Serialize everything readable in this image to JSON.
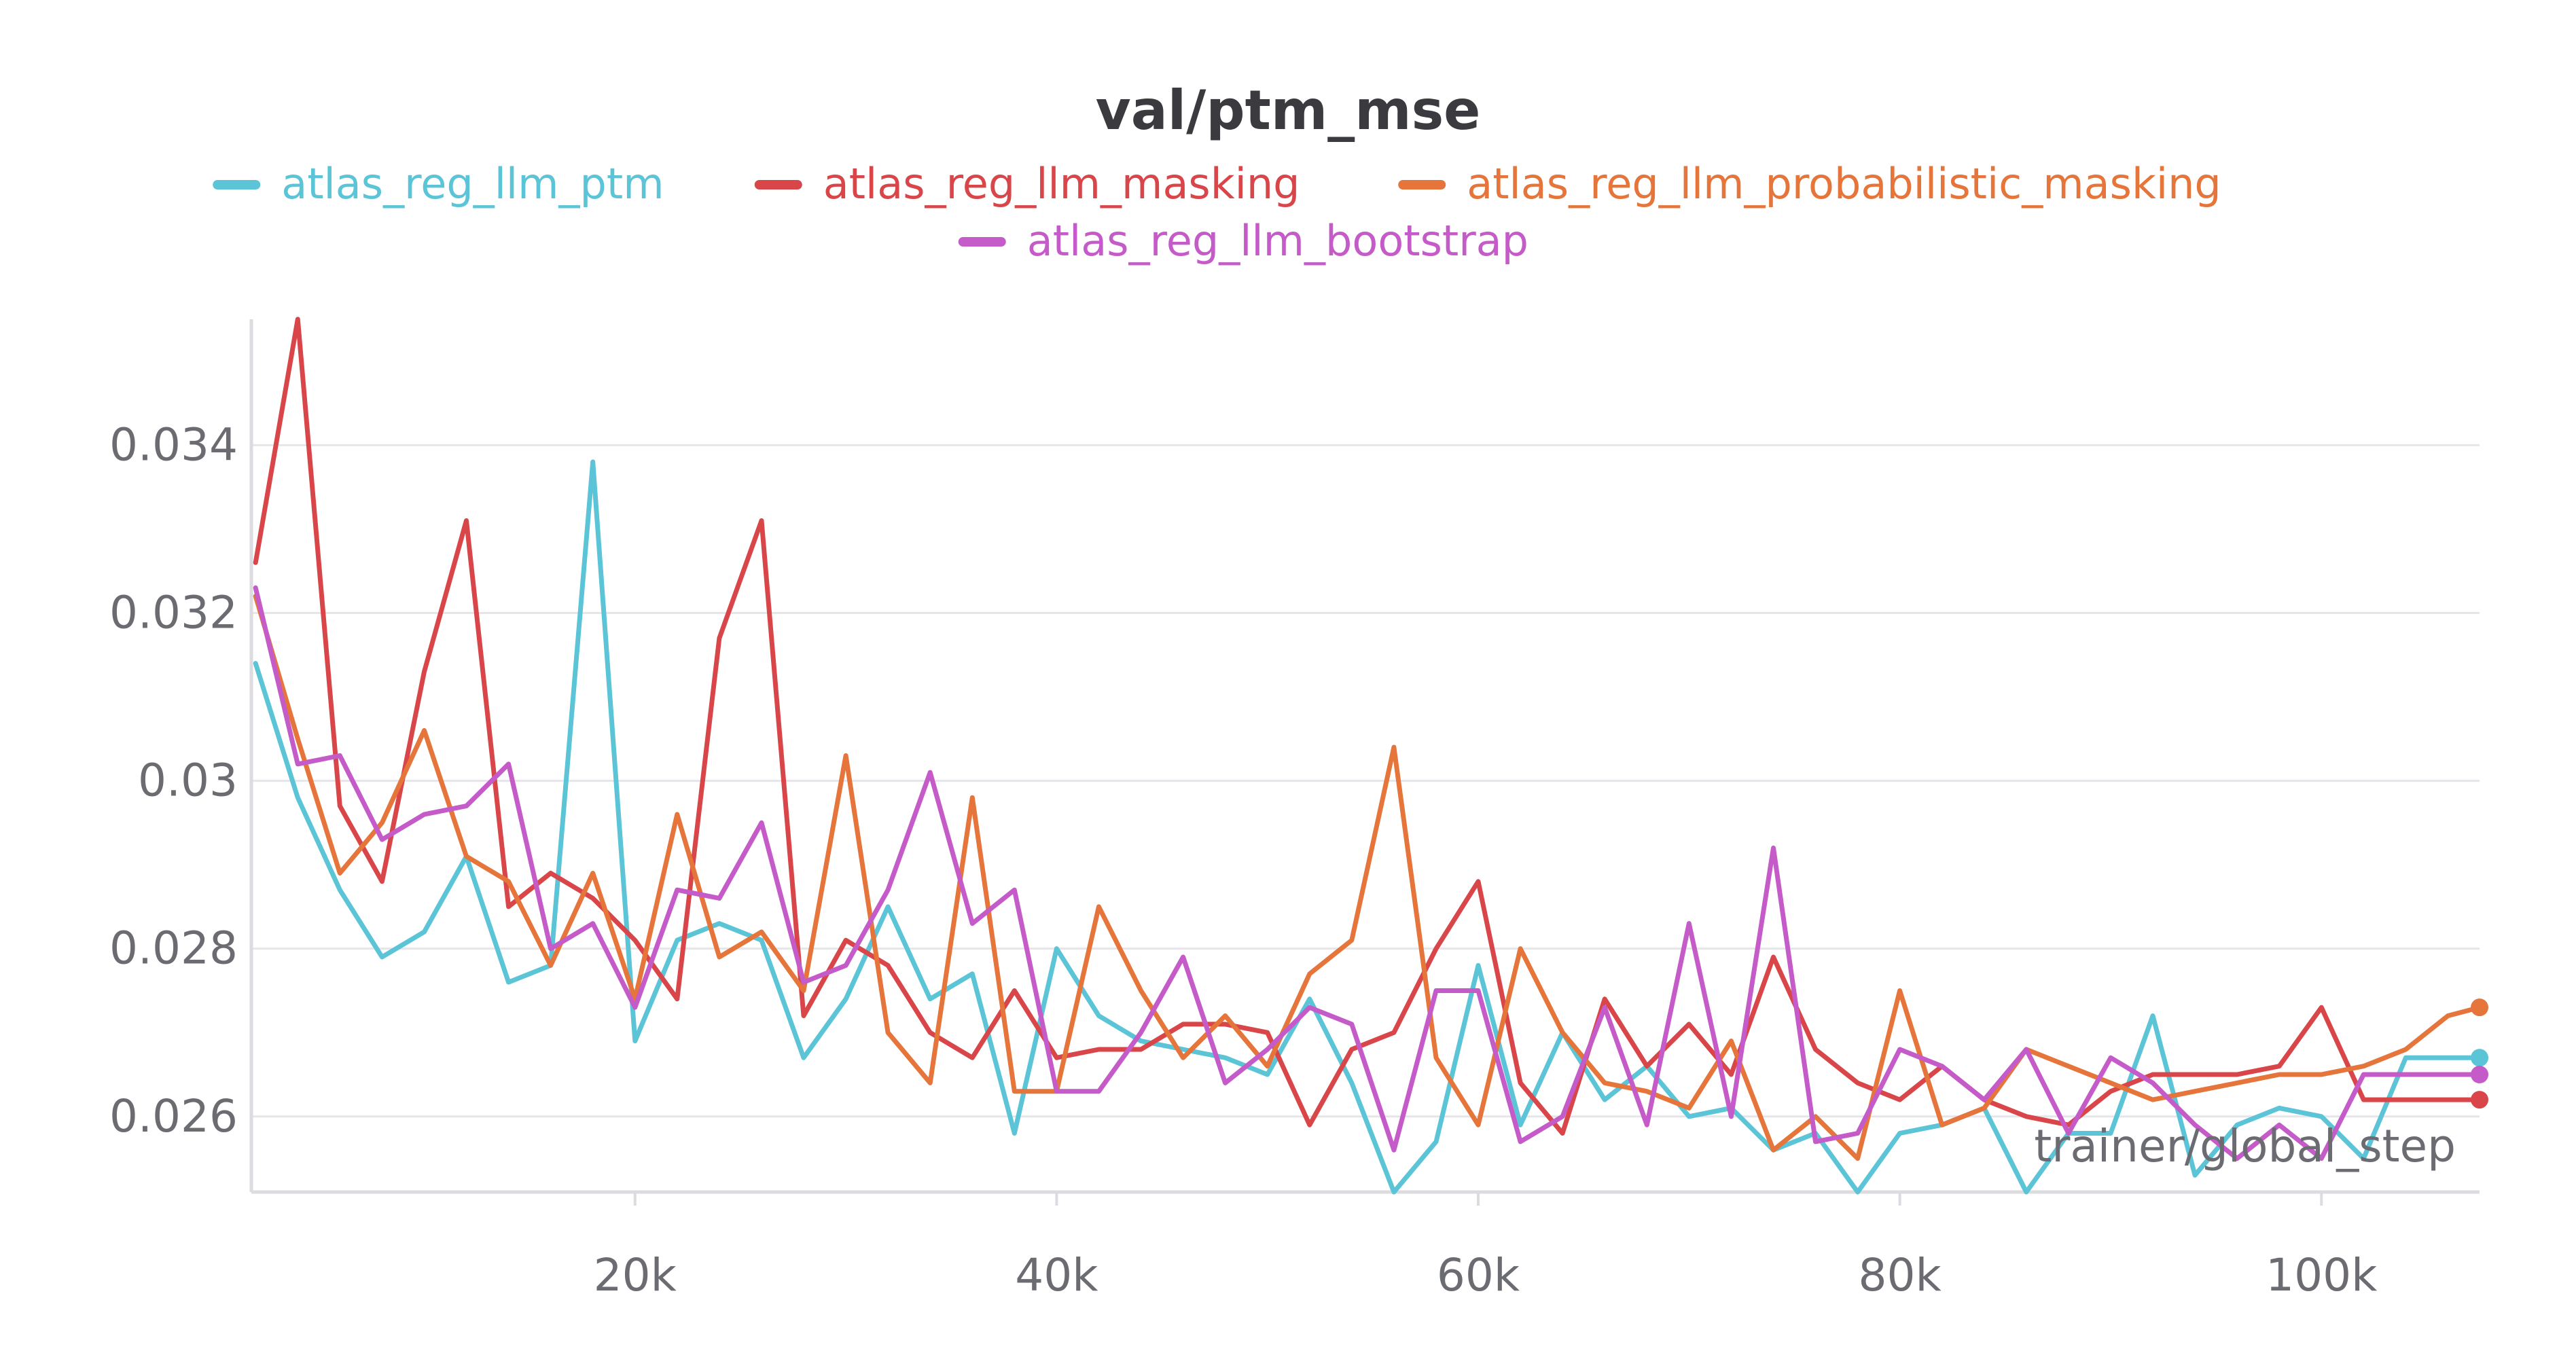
{
  "chart_data": {
    "type": "line",
    "title": "val/ptm_mse",
    "xlabel": "trainer/global_step",
    "ylabel": "",
    "xlim": [
      1800,
      107500
    ],
    "ylim": [
      0.0251,
      0.0355
    ],
    "x_ticks": [
      {
        "value": 20000,
        "label": "20k"
      },
      {
        "value": 40000,
        "label": "40k"
      },
      {
        "value": 60000,
        "label": "60k"
      },
      {
        "value": 80000,
        "label": "80k"
      },
      {
        "value": 100000,
        "label": "100k"
      }
    ],
    "y_ticks": [
      {
        "value": 0.026,
        "label": "0.026"
      },
      {
        "value": 0.028,
        "label": "0.028"
      },
      {
        "value": 0.03,
        "label": "0.03"
      },
      {
        "value": 0.032,
        "label": "0.032"
      },
      {
        "value": 0.034,
        "label": "0.034"
      }
    ],
    "grid": "horizontal",
    "legend_position": "top",
    "x": [
      2000,
      4000,
      6000,
      8000,
      10000,
      12000,
      14000,
      16000,
      18000,
      20000,
      22000,
      24000,
      26000,
      28000,
      30000,
      32000,
      34000,
      36000,
      38000,
      40000,
      42000,
      44000,
      46000,
      48000,
      50000,
      52000,
      54000,
      56000,
      58000,
      60000,
      62000,
      64000,
      66000,
      68000,
      70000,
      72000,
      74000,
      76000,
      78000,
      80000,
      82000,
      84000,
      86000,
      88000,
      90000,
      92000,
      94000,
      96000,
      98000,
      100000,
      102000,
      104000,
      106000,
      107500
    ],
    "series": [
      {
        "name": "atlas_reg_llm_ptm",
        "color": "#5bc4d6",
        "values": [
          0.0314,
          0.0298,
          0.0287,
          0.0279,
          0.0282,
          0.0291,
          0.0276,
          0.0278,
          0.0338,
          0.0269,
          0.0281,
          0.0283,
          0.0281,
          0.0267,
          0.0274,
          0.0285,
          0.0274,
          0.0277,
          0.0258,
          0.028,
          0.0272,
          0.0269,
          0.0268,
          0.0267,
          0.0265,
          0.0274,
          0.0264,
          0.0251,
          0.0257,
          0.0278,
          0.0259,
          0.027,
          0.0262,
          0.0266,
          0.026,
          0.0261,
          0.0256,
          0.0258,
          0.0251,
          0.0258,
          0.0259,
          0.0261,
          0.0251,
          0.0258,
          0.0258,
          0.0272,
          0.0253,
          0.0259,
          0.0261,
          0.026,
          0.0255,
          0.0267,
          0.0267,
          0.0267
        ]
      },
      {
        "name": "atlas_reg_llm_masking",
        "color": "#d9464a",
        "values": [
          0.0326,
          0.0355,
          0.0297,
          0.0288,
          0.0313,
          0.0331,
          0.0285,
          0.0289,
          0.0286,
          0.0281,
          0.0274,
          0.0317,
          0.0331,
          0.0272,
          0.0281,
          0.0278,
          0.027,
          0.0267,
          0.0275,
          0.0267,
          0.0268,
          0.0268,
          0.0271,
          0.0271,
          0.027,
          0.0259,
          0.0268,
          0.027,
          0.028,
          0.0288,
          0.0264,
          0.0258,
          0.0274,
          0.0266,
          0.0271,
          0.0265,
          0.0279,
          0.0268,
          0.0264,
          0.0262,
          0.0266,
          0.0262,
          0.026,
          0.0259,
          0.0263,
          0.0265,
          0.0265,
          0.0265,
          0.0266,
          0.0273,
          0.0262,
          0.0262,
          0.0262,
          0.0262
        ]
      },
      {
        "name": "atlas_reg_llm_probabilistic_masking",
        "color": "#e5753a",
        "values": [
          0.0322,
          0.0305,
          0.0289,
          0.0295,
          0.0306,
          0.0291,
          0.0288,
          0.0278,
          0.0289,
          0.0274,
          0.0296,
          0.0279,
          0.0282,
          0.0275,
          0.0303,
          0.027,
          0.0264,
          0.0298,
          0.0263,
          0.0263,
          0.0285,
          0.0275,
          0.0267,
          0.0272,
          0.0266,
          0.0277,
          0.0281,
          0.0304,
          0.0267,
          0.0259,
          0.028,
          0.027,
          0.0264,
          0.0263,
          0.0261,
          0.0269,
          0.0256,
          0.026,
          0.0255,
          0.0275,
          0.0259,
          0.0261,
          0.0268,
          0.0266,
          0.0264,
          0.0262,
          0.0263,
          0.0264,
          0.0265,
          0.0265,
          0.0266,
          0.0268,
          0.0272,
          0.0273
        ]
      },
      {
        "name": "atlas_reg_llm_bootstrap",
        "color": "#c55ac9",
        "values": [
          0.0323,
          0.0302,
          0.0303,
          0.0293,
          0.0296,
          0.0297,
          0.0302,
          0.028,
          0.0283,
          0.0273,
          0.0287,
          0.0286,
          0.0295,
          0.0276,
          0.0278,
          0.0287,
          0.0301,
          0.0283,
          0.0287,
          0.0263,
          0.0263,
          0.027,
          0.0279,
          0.0264,
          0.0268,
          0.0273,
          0.0271,
          0.0256,
          0.0275,
          0.0275,
          0.0257,
          0.026,
          0.0273,
          0.0259,
          0.0283,
          0.026,
          0.0292,
          0.0257,
          0.0258,
          0.0268,
          0.0266,
          0.0262,
          0.0268,
          0.0258,
          0.0267,
          0.0264,
          0.0259,
          0.0255,
          0.0259,
          0.0255,
          0.0265,
          0.0265,
          0.0265,
          0.0265
        ]
      }
    ]
  }
}
